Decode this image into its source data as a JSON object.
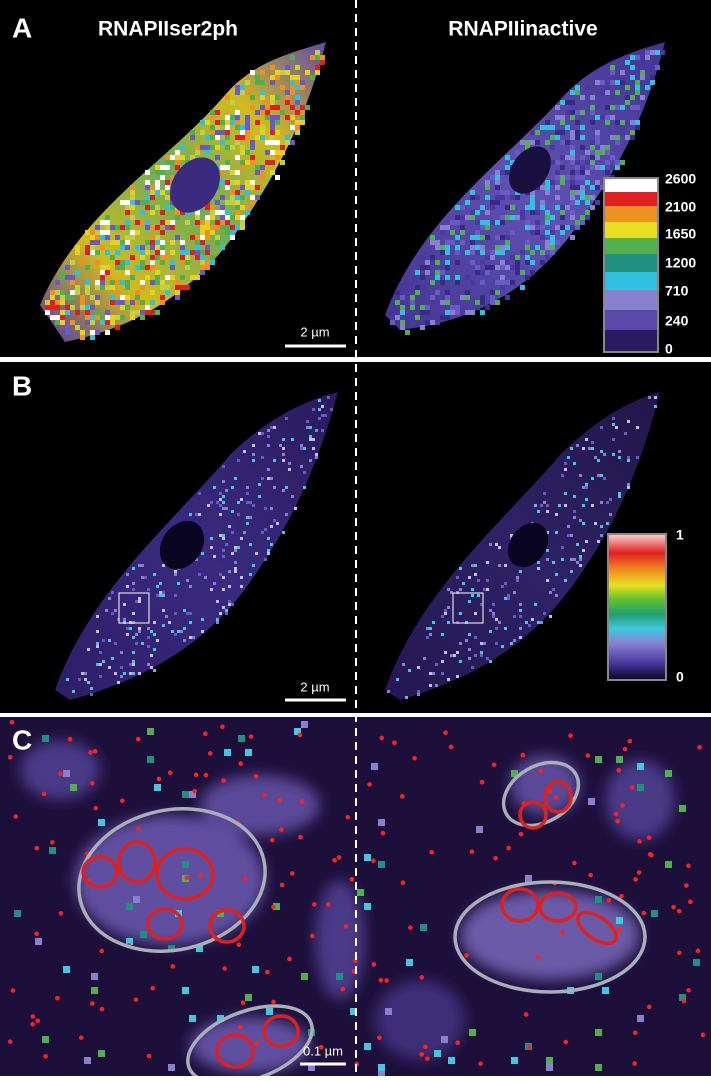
{
  "panels": [
    {
      "label": "A",
      "titles": [
        "RNAPIIser2ph",
        "RNAPIIinactive"
      ],
      "scale_bar": "2 µm",
      "colorbar_ticks": [
        2600,
        2100,
        1650,
        1200,
        710,
        240,
        0
      ]
    },
    {
      "label": "B",
      "scale_bar": "2 µm",
      "colorbar_ticks": [
        1,
        0
      ]
    },
    {
      "label": "C",
      "scale_bar": "0.1 µm"
    }
  ]
}
